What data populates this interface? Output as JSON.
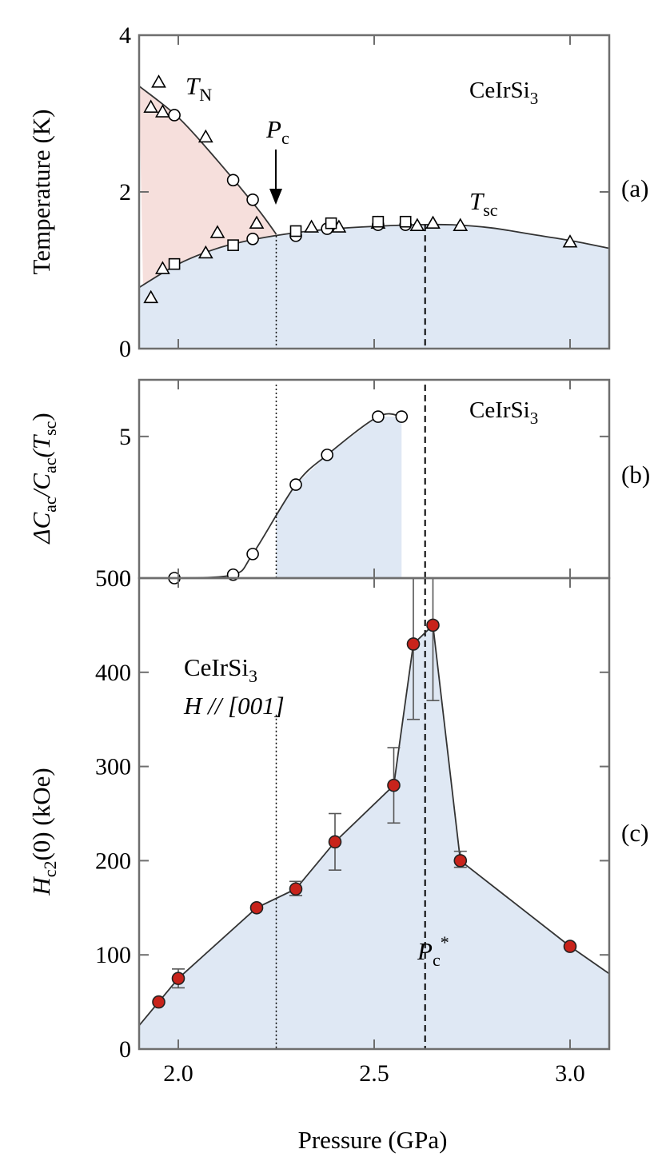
{
  "chart_data": [
    {
      "panel": "(a)",
      "type": "scatter",
      "compound": "CeIrSi",
      "compound_sub": "3",
      "ylabel": "Temperature (K)",
      "xlabel": "Pressure (GPa)",
      "xlim": [
        1.9,
        3.1
      ],
      "ylim": [
        0,
        4
      ],
      "yticks": [
        0,
        2,
        4
      ],
      "series": [
        {
          "name": "triangles",
          "marker": "triangle",
          "points": [
            [
              1.95,
              3.4
            ],
            [
              1.93,
              3.08
            ],
            [
              1.96,
              3.02
            ],
            [
              2.07,
              2.7
            ],
            [
              2.2,
              1.6
            ],
            [
              2.1,
              1.48
            ],
            [
              2.07,
              1.22
            ],
            [
              1.96,
              1.02
            ],
            [
              1.93,
              0.65
            ],
            [
              2.34,
              1.55
            ],
            [
              2.41,
              1.55
            ],
            [
              2.51,
              1.6
            ],
            [
              2.61,
              1.57
            ],
            [
              2.65,
              1.6
            ],
            [
              2.72,
              1.57
            ],
            [
              3.0,
              1.36
            ]
          ]
        },
        {
          "name": "circles",
          "marker": "circle",
          "points": [
            [
              1.99,
              2.98
            ],
            [
              2.14,
              2.15
            ],
            [
              2.19,
              1.9
            ],
            [
              2.19,
              1.4
            ],
            [
              2.3,
              1.44
            ],
            [
              2.38,
              1.53
            ],
            [
              2.51,
              1.58
            ],
            [
              2.58,
              1.58
            ]
          ]
        },
        {
          "name": "squares",
          "marker": "square",
          "points": [
            [
              1.99,
              1.08
            ],
            [
              2.14,
              1.32
            ],
            [
              2.3,
              1.5
            ],
            [
              2.39,
              1.6
            ],
            [
              2.51,
              1.62
            ],
            [
              2.58,
              1.62
            ]
          ]
        }
      ],
      "annotations": {
        "tn_main": "T",
        "tn_sub": "N",
        "pc_main": "P",
        "pc_sub": "c",
        "tsc_main": "T",
        "tsc_sub": "sc"
      },
      "pc": 2.25,
      "pc_star": 2.63,
      "tn_curve": [
        [
          1.9,
          3.35
        ],
        [
          2.0,
          2.95
        ],
        [
          2.1,
          2.4
        ],
        [
          2.2,
          1.8
        ],
        [
          2.25,
          1.46
        ]
      ],
      "tsc_curve": [
        [
          1.9,
          0.78
        ],
        [
          2.0,
          1.08
        ],
        [
          2.1,
          1.28
        ],
        [
          2.2,
          1.4
        ],
        [
          2.3,
          1.48
        ],
        [
          2.4,
          1.53
        ],
        [
          2.5,
          1.56
        ],
        [
          2.6,
          1.58
        ],
        [
          2.7,
          1.58
        ],
        [
          2.8,
          1.54
        ],
        [
          2.9,
          1.46
        ],
        [
          3.0,
          1.38
        ],
        [
          3.1,
          1.28
        ]
      ]
    },
    {
      "panel": "(b)",
      "type": "line",
      "compound": "CeIrSi",
      "compound_sub": "3",
      "ylabel_parts": [
        "ΔC",
        "ac",
        "/C",
        "ac",
        "(T",
        "sc",
        ")"
      ],
      "xlim": [
        1.9,
        3.1
      ],
      "ylim": [
        0,
        7
      ],
      "yticks": [
        0,
        5
      ],
      "points": [
        [
          1.99,
          0.0
        ],
        [
          2.14,
          0.12
        ],
        [
          2.19,
          0.85
        ],
        [
          2.3,
          3.3
        ],
        [
          2.38,
          4.35
        ],
        [
          2.51,
          5.7
        ],
        [
          2.57,
          5.7
        ]
      ]
    },
    {
      "panel": "(c)",
      "type": "line",
      "compound": "CeIrSi",
      "compound_sub": "3",
      "field_label": "H // [001]",
      "ylabel_parts": [
        "H",
        "c2",
        "(0)  (kOe)"
      ],
      "xlabel": "Pressure (GPa)",
      "xlim": [
        1.9,
        3.1
      ],
      "ylim": [
        0,
        500
      ],
      "yticks": [
        0,
        100,
        200,
        300,
        400,
        500
      ],
      "xticks": [
        "2.0",
        "2.5",
        "3.0"
      ],
      "xtick_values": [
        2.0,
        2.5,
        3.0
      ],
      "pc_star_main": "P",
      "pc_star_sub": "c",
      "pc_star_sup": "*",
      "points": [
        [
          1.9,
          25
        ],
        [
          1.95,
          50
        ],
        [
          2.0,
          75
        ],
        [
          2.2,
          150
        ],
        [
          2.3,
          170
        ],
        [
          2.4,
          220
        ],
        [
          2.55,
          280
        ],
        [
          2.6,
          430
        ],
        [
          2.65,
          450
        ],
        [
          2.72,
          200
        ],
        [
          3.0,
          109
        ],
        [
          3.1,
          80
        ]
      ],
      "markers": [
        [
          1.95,
          50
        ],
        [
          2.0,
          75
        ],
        [
          2.2,
          150
        ],
        [
          2.3,
          170
        ],
        [
          2.4,
          220
        ],
        [
          2.55,
          280
        ],
        [
          2.6,
          430
        ],
        [
          2.65,
          450
        ],
        [
          2.72,
          200
        ],
        [
          3.0,
          109
        ]
      ],
      "errorbars": [
        [
          2.0,
          65,
          85
        ],
        [
          2.3,
          163,
          178
        ],
        [
          2.4,
          190,
          250
        ],
        [
          2.55,
          240,
          320
        ],
        [
          2.6,
          350,
          510
        ],
        [
          2.65,
          370,
          520
        ],
        [
          2.72,
          193,
          210
        ]
      ],
      "marker_color": "#c8231b"
    }
  ],
  "panel_labels": [
    "(a)",
    "(b)",
    "(c)"
  ],
  "colors": {
    "afm_fill": "#f6dfdc",
    "sc_fill": "#dfe8f4",
    "axis": "#6e6e6e",
    "line": "#333333",
    "marker": "#c8231b"
  }
}
